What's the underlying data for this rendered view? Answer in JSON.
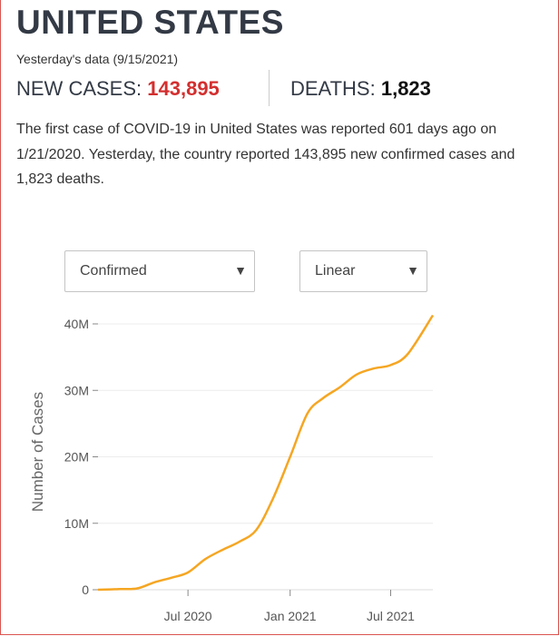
{
  "header": {
    "country": "UNITED STATES",
    "data_note": "Yesterday's data (9/15/2021)"
  },
  "stats": {
    "cases_label": "NEW CASES:",
    "cases_value": "143,895",
    "deaths_label": "DEATHS:",
    "deaths_value": "1,823"
  },
  "summary": {
    "p1": "The first case of ",
    "covid": "COVID-19",
    "p2": " in United States was reported 601 days ago on 1/21/2020. Yesterday, the country reported 143,895 new confirmed cases and 1,823 deaths."
  },
  "controls": {
    "metric_selected": "Confirmed",
    "scale_selected": "Linear"
  },
  "colors": {
    "line": "#f5a623",
    "cases_value": "#d32f2f",
    "border": "#d9534f"
  },
  "icons": {
    "dropdown": "triangle-down-icon"
  },
  "chart_data": {
    "type": "line",
    "ylabel": "Number of Cases",
    "xlabel": "",
    "title": "",
    "ylim": [
      0,
      42000000
    ],
    "xlim": [
      "2020-01-21",
      "2021-09-15"
    ],
    "yticks": [
      {
        "value": 0,
        "label": "0"
      },
      {
        "value": 10000000,
        "label": "10M"
      },
      {
        "value": 20000000,
        "label": "20M"
      },
      {
        "value": 30000000,
        "label": "30M"
      },
      {
        "value": 40000000,
        "label": "40M"
      }
    ],
    "xticks": [
      {
        "date": "2020-07-01",
        "label": "Jul 2020"
      },
      {
        "date": "2021-01-01",
        "label": "Jan 2021"
      },
      {
        "date": "2021-07-01",
        "label": "Jul 2021"
      }
    ],
    "grid": "horizontal",
    "legend": "none",
    "series": [
      {
        "x": [
          "2020-01-21",
          "2020-03-01",
          "2020-04-01",
          "2020-05-01",
          "2020-06-01",
          "2020-07-01",
          "2020-08-01",
          "2020-09-01",
          "2020-10-01",
          "2020-11-01",
          "2020-12-01",
          "2021-01-01",
          "2021-02-01",
          "2021-03-01",
          "2021-04-01",
          "2021-05-01",
          "2021-06-01",
          "2021-07-01",
          "2021-08-01",
          "2021-09-15"
        ],
        "y": [
          0,
          100000,
          200000,
          1100000,
          1800000,
          2600000,
          4600000,
          6000000,
          7200000,
          9000000,
          13700000,
          20000000,
          26500000,
          28800000,
          30500000,
          32400000,
          33300000,
          33800000,
          35500000,
          41300000
        ]
      }
    ]
  }
}
